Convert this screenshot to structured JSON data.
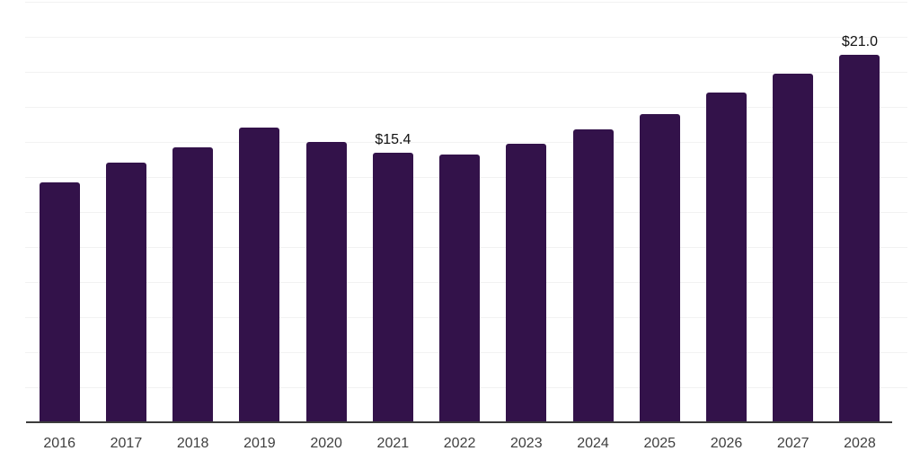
{
  "chart_data": {
    "type": "bar",
    "title": "",
    "xlabel": "",
    "ylabel": "",
    "categories": [
      "2016",
      "2017",
      "2018",
      "2019",
      "2020",
      "2021",
      "2022",
      "2023",
      "2024",
      "2025",
      "2026",
      "2027",
      "2028"
    ],
    "values": [
      13.7,
      14.8,
      15.7,
      16.8,
      16.0,
      15.4,
      15.3,
      15.9,
      16.7,
      17.6,
      18.8,
      19.9,
      21.0
    ],
    "data_labels": [
      {
        "category": "2021",
        "text": "$15.4"
      },
      {
        "category": "2028",
        "text": "$21.0"
      }
    ],
    "ylim": [
      0,
      24
    ],
    "grid_step": 2,
    "grid": "horizontal",
    "legend": "none",
    "y_axis_labels_visible": false,
    "colors": {
      "bar": "#33124a",
      "gridline": "#f2f2f2",
      "axis_line": "#3c3c3c",
      "tick_label": "#3f3f3f",
      "data_label": "#111111",
      "background": "#ffffff"
    }
  }
}
